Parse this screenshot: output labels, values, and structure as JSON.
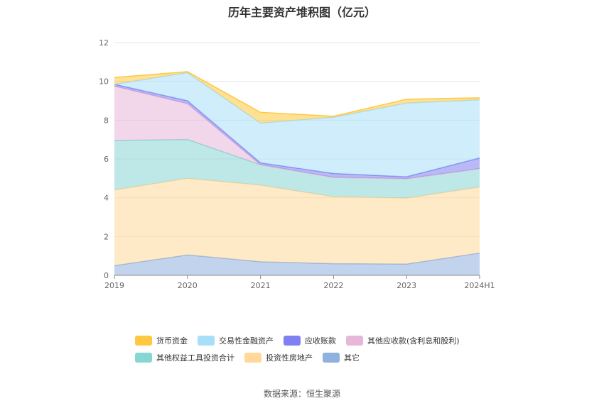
{
  "title": "历年主要资产堆积图（亿元）",
  "source": "数据来源：恒生聚源",
  "chart_data": {
    "type": "area",
    "stacked": true,
    "categories": [
      "2019",
      "2020",
      "2021",
      "2022",
      "2023",
      "2024H1"
    ],
    "ylim": [
      0,
      12
    ],
    "yticks": [
      0,
      2,
      4,
      6,
      8,
      10,
      12
    ],
    "grid": true,
    "legend_position": "bottom",
    "series": [
      {
        "name": "其它",
        "color": "#8fb1de",
        "values": [
          0.5,
          1.05,
          0.7,
          0.6,
          0.58,
          1.15
        ]
      },
      {
        "name": "投资性房地产",
        "color": "#ffd89a",
        "values": [
          3.9,
          3.95,
          3.95,
          3.45,
          3.4,
          3.4
        ]
      },
      {
        "name": "其他权益工具投资合计",
        "color": "#86d6d4",
        "values": [
          2.55,
          2.0,
          1.05,
          1.0,
          1.0,
          0.95
        ]
      },
      {
        "name": "其他应收款(含利息和股利)",
        "color": "#e7b6d8",
        "values": [
          2.8,
          1.85,
          0.0,
          0.0,
          0.0,
          0.0
        ]
      },
      {
        "name": "应收账款",
        "color": "#8080f0",
        "values": [
          0.1,
          0.15,
          0.1,
          0.2,
          0.1,
          0.55
        ]
      },
      {
        "name": "交易性金融资产",
        "color": "#a8dff8",
        "values": [
          0.0,
          1.45,
          2.05,
          2.9,
          3.8,
          3.0
        ]
      },
      {
        "name": "货币资金",
        "color": "#ffc840",
        "values": [
          0.35,
          0.05,
          0.55,
          0.05,
          0.2,
          0.1
        ]
      }
    ],
    "legend": [
      [
        "货币资金",
        "交易性金融资产",
        "应收账款",
        "其他应收款(含利息和股利)"
      ],
      [
        "其他权益工具投资合计",
        "投资性房地产",
        "其它"
      ]
    ]
  }
}
